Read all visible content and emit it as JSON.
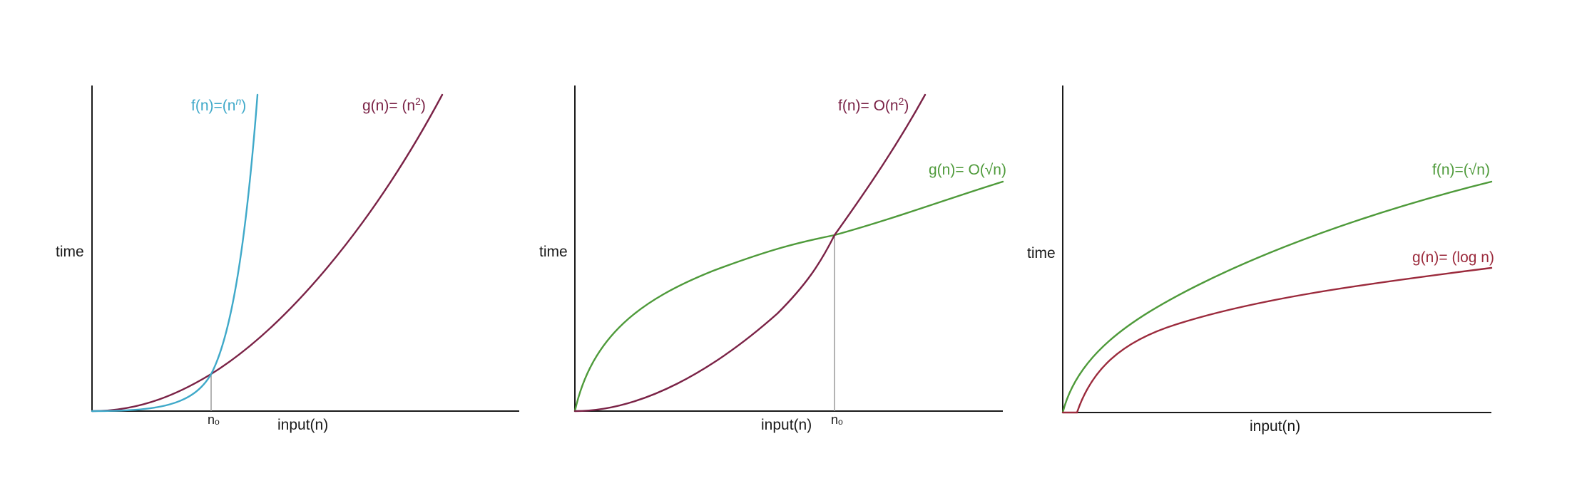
{
  "colors": {
    "cyan": "#3fa9c9",
    "maroon": "#7a2246",
    "green": "#4e9a3a",
    "red": "#9b2a3c",
    "axis": "#1a1a1a"
  },
  "panels": [
    {
      "ylabel": "time",
      "xlabel": "input(n)",
      "n0_label": "nₒ",
      "curves": [
        {
          "key": "f",
          "label_pre": "f(n)=(n",
          "label_sup": "n",
          "label_post": ")",
          "color": "#3fa9c9"
        },
        {
          "key": "g",
          "label_pre": "g(n)= (n",
          "label_sup": "2",
          "label_post": ")",
          "color": "#7a2246"
        }
      ]
    },
    {
      "ylabel": "time",
      "xlabel": "input(n)",
      "n0_label": "nₒ",
      "curves": [
        {
          "key": "f",
          "label_pre": "f(n)= O(n",
          "label_sup": "2",
          "label_post": ")",
          "color": "#7a2246"
        },
        {
          "key": "g",
          "label_pre": "g(n)= O(√n)",
          "label_sup": "",
          "label_post": "",
          "color": "#4e9a3a"
        }
      ]
    },
    {
      "ylabel": "time",
      "xlabel": "input(n)",
      "n0_label": "",
      "curves": [
        {
          "key": "f",
          "label_pre": "f(n)=(√n)",
          "label_sup": "",
          "label_post": "",
          "color": "#4e9a3a"
        },
        {
          "key": "g",
          "label_pre": "g(n)= (log n)",
          "label_sup": "",
          "label_post": "",
          "color": "#9b2a3c"
        }
      ]
    }
  ]
}
